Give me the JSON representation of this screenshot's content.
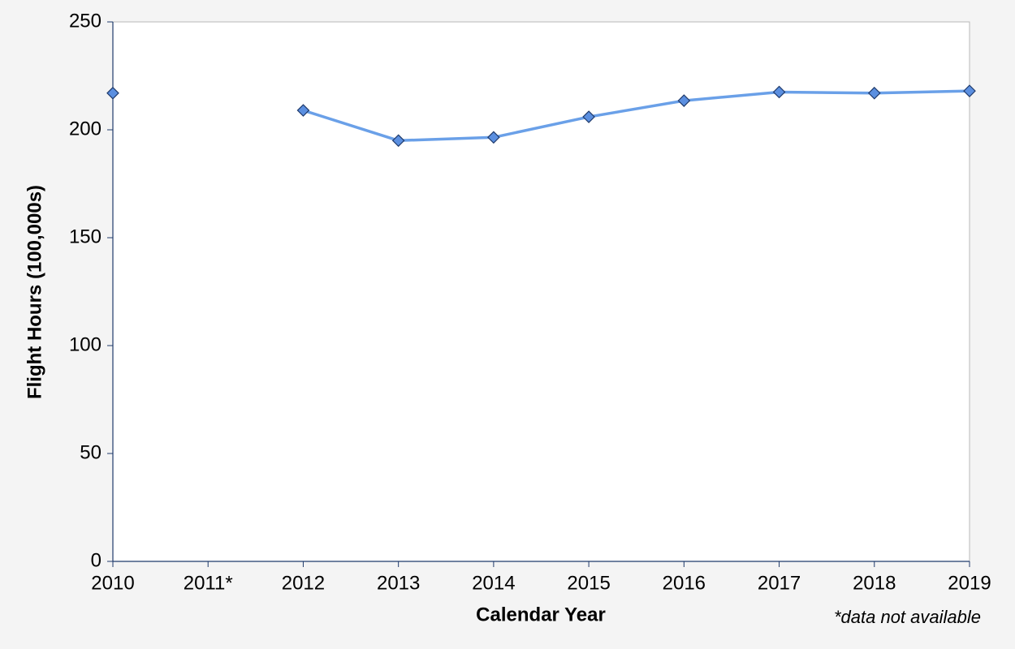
{
  "chart_data": {
    "type": "line",
    "x_label": "Calendar Year",
    "y_label": "Flight Hours (100,000s)",
    "annotation": "*data not available",
    "categories": [
      "2010",
      "2011*",
      "2012",
      "2013",
      "2014",
      "2015",
      "2016",
      "2017",
      "2018",
      "2019"
    ],
    "series": [
      {
        "name": "Flight Hours",
        "color": "#6aa0e8",
        "marker_color": "#5b8fe0",
        "values": [
          217,
          null,
          209,
          195,
          196.5,
          206,
          213.5,
          217.5,
          217,
          218
        ]
      }
    ],
    "ylim": [
      0,
      250
    ],
    "yticks": [
      0,
      50,
      100,
      150,
      200,
      250
    ],
    "grid": false
  }
}
